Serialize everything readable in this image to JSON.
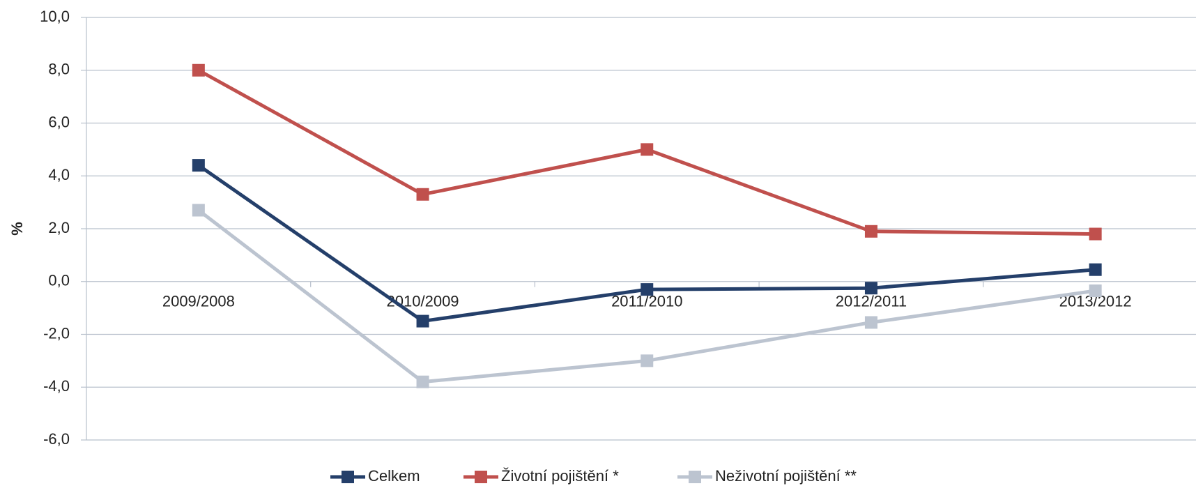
{
  "chart_data": {
    "type": "line",
    "y_label": "%",
    "categories": [
      "2009/2008",
      "2010/2009",
      "2011/2010",
      "2012/2011",
      "2013/2012"
    ],
    "series": [
      {
        "name": "Celkem",
        "color": "#243f6a",
        "values": [
          4.4,
          -1.5,
          -0.3,
          -0.25,
          0.45
        ]
      },
      {
        "name": "Životní pojištění *",
        "color": "#c0504d",
        "values": [
          8.0,
          3.3,
          5.0,
          1.9,
          1.8
        ]
      },
      {
        "name": "Neživotní pojištění **",
        "color": "#bcc4d0",
        "values": [
          2.7,
          -3.8,
          -3.0,
          -1.55,
          -0.35
        ]
      }
    ],
    "ylim": [
      -6,
      10
    ],
    "yticks": [
      {
        "value": -6,
        "label": "-6,0"
      },
      {
        "value": -4,
        "label": "-4,0"
      },
      {
        "value": -2,
        "label": "-2,0"
      },
      {
        "value": 0,
        "label": "0,0"
      },
      {
        "value": 2,
        "label": "2,0"
      },
      {
        "value": 4,
        "label": "4,0"
      },
      {
        "value": 6,
        "label": "6,0"
      },
      {
        "value": 8,
        "label": "8,0"
      },
      {
        "value": 10,
        "label": "10,0"
      }
    ],
    "grid": true,
    "legend": "bottom"
  }
}
